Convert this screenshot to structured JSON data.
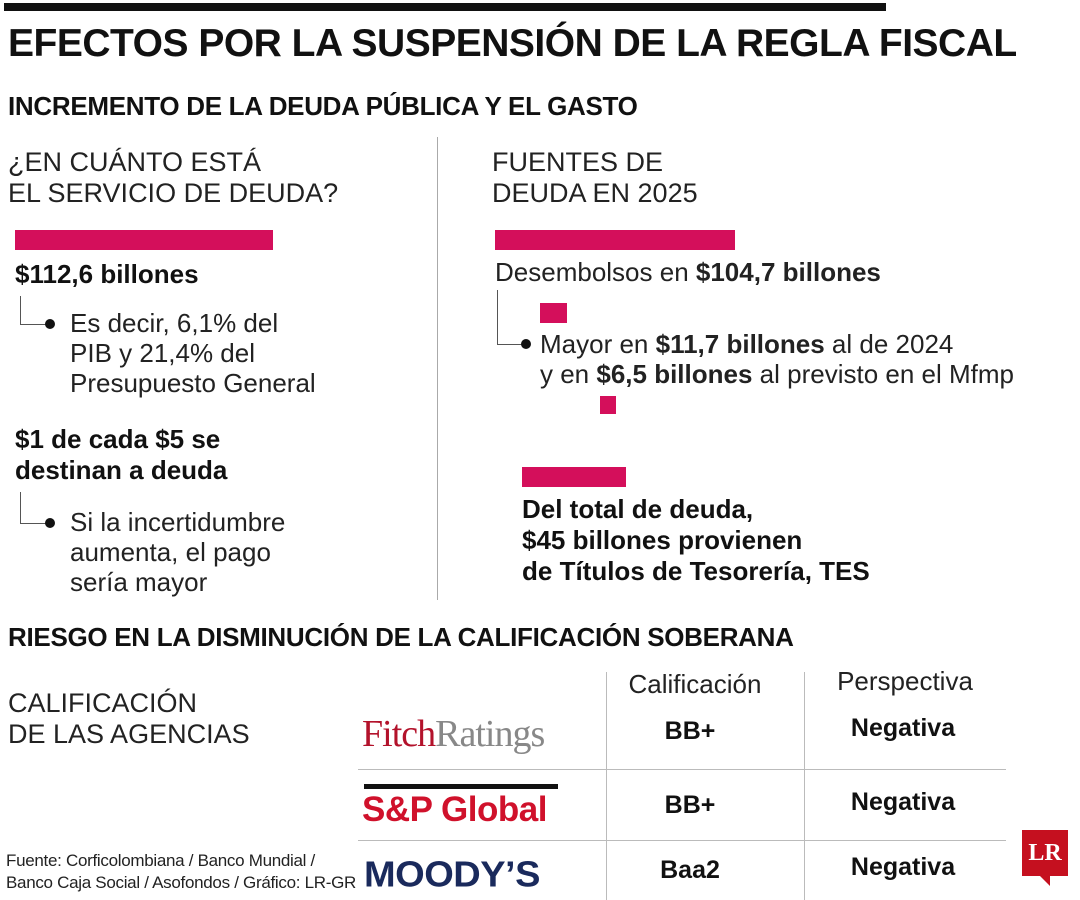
{
  "title": "EFECTOS POR LA SUSPENSIÓN DE LA REGLA FISCAL",
  "section1": {
    "heading": "INCREMENTO DE LA DEUDA PÚBLICA Y EL GASTO",
    "left": {
      "question_line1": "¿EN CUÁNTO ESTÁ",
      "question_line2": "EL SERVICIO DE DEUDA?",
      "amount": "$112,6 billones",
      "note_line1": "Es decir, 6,1% del",
      "note_line2": "PIB y 21,4% del",
      "note_line3": "Presupuesto General",
      "fact_line1": "$1 de cada $5 se",
      "fact_line2": "destinan a deuda",
      "fact_note_line1": "Si la incertidumbre",
      "fact_note_line2": "aumenta, el pago",
      "fact_note_line3": "sería mayor"
    },
    "right": {
      "heading_line1": "FUENTES DE",
      "heading_line2": "DEUDA EN 2025",
      "disb_prefix": "Desembolsos en ",
      "disb_amount": "$104,7 billones",
      "more_prefix": "Mayor en ",
      "more_amount": "$11,7 billones",
      "more_suffix": " al de 2024",
      "and_prefix": "y en ",
      "and_amount": "$6,5 billones",
      "and_suffix": " al previsto en el Mfmp",
      "tes_line1": "Del total de deuda,",
      "tes_line2": "$45 billones provienen",
      "tes_line3": "de Títulos de Tesorería, TES"
    }
  },
  "section2": {
    "heading": "RIESGO EN LA DISMINUCIÓN DE LA CALIFICACIÓN SOBERANA",
    "label_line1": "CALIFICACIÓN",
    "label_line2": "DE LAS AGENCIAS",
    "col_rating": "Calificación",
    "col_outlook": "Perspectiva",
    "agencies": [
      {
        "name_a": "Fitch",
        "name_b": "Ratings",
        "rating": "BB+",
        "outlook": "Negativa"
      },
      {
        "name_a": "S&P Global",
        "rating": "BB+",
        "outlook": "Negativa"
      },
      {
        "name_a": "MOODY’S",
        "rating": "Baa2",
        "outlook": "Negativa"
      }
    ]
  },
  "source_line1": "Fuente: Corficolombiana / Banco Mundial /",
  "source_line2": "Banco Caja Social / Asofondos / Gráfico: LR-GR",
  "logo": "LR",
  "colors": {
    "accent": "#d40f5b",
    "text": "#111111",
    "logo": "#c5101f"
  }
}
